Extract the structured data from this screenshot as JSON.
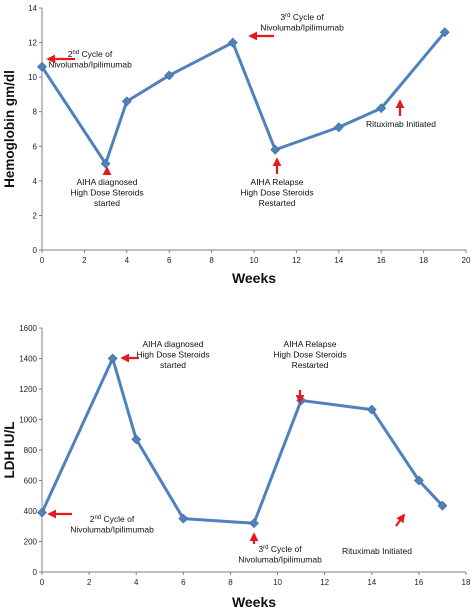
{
  "colors": {
    "line": "#4f81bd",
    "marker": "#4f81bd",
    "arrow": "#e41a1c",
    "axis": "#808080"
  },
  "chart_data": [
    {
      "type": "line",
      "xlabel": "Weeks",
      "ylabel": "Hemoglobin gm/dl",
      "xlim": [
        0,
        20
      ],
      "ylim": [
        0,
        14
      ],
      "xticks": [
        "0",
        "2",
        "4",
        "6",
        "8",
        "10",
        "12",
        "14",
        "16",
        "18",
        "20"
      ],
      "yticks": [
        "0",
        "2",
        "4",
        "6",
        "8",
        "10",
        "12",
        "14"
      ],
      "grid": false,
      "series": [
        {
          "x": [
            0,
            3,
            4,
            6,
            9,
            11,
            14,
            16,
            19
          ],
          "y": [
            10.6,
            5.0,
            8.6,
            10.1,
            12.0,
            5.8,
            7.1,
            8.2,
            12.6
          ]
        }
      ],
      "annotations": [
        {
          "lines": [
            "2nd Cycle of",
            "Nivolumab/Ipilimumab"
          ]
        },
        {
          "lines": [
            "AIHA diagnosed",
            "High Dose Steroids",
            "started"
          ]
        },
        {
          "lines": [
            "3rd Cycle of",
            "Nivolumab/Ipilimumab"
          ]
        },
        {
          "lines": [
            "AIHA Relapse",
            "High Dose Steroids",
            "Restarted"
          ]
        },
        {
          "lines": [
            "Rituximab Initiated"
          ]
        }
      ]
    },
    {
      "type": "line",
      "xlabel": "Weeks",
      "ylabel": "LDH IU/L",
      "xlim": [
        0,
        18
      ],
      "ylim": [
        0,
        1600
      ],
      "xticks": [
        "0",
        "2",
        "4",
        "6",
        "8",
        "10",
        "12",
        "14",
        "16",
        "18"
      ],
      "yticks": [
        "0",
        "200",
        "400",
        "600",
        "800",
        "1000",
        "1200",
        "1400",
        "1600"
      ],
      "grid": false,
      "series": [
        {
          "x": [
            0,
            3,
            4,
            6,
            9,
            11,
            14,
            16,
            17
          ],
          "y": [
            390,
            1400,
            870,
            350,
            320,
            1125,
            1065,
            600,
            435
          ]
        }
      ],
      "annotations": [
        {
          "lines": [
            "AIHA diagnosed",
            "High Dose Steroids",
            "started"
          ]
        },
        {
          "lines": [
            "AIHA Relapse",
            "High Dose Steroids",
            "Restarted"
          ]
        },
        {
          "lines": [
            "2nd Cycle of",
            "Nivolumab/Ipilimumab"
          ]
        },
        {
          "lines": [
            "3rd Cycle of",
            "Nivolumab/Ipilimumab"
          ]
        },
        {
          "lines": [
            "Rituximab Initiated"
          ]
        }
      ]
    }
  ]
}
